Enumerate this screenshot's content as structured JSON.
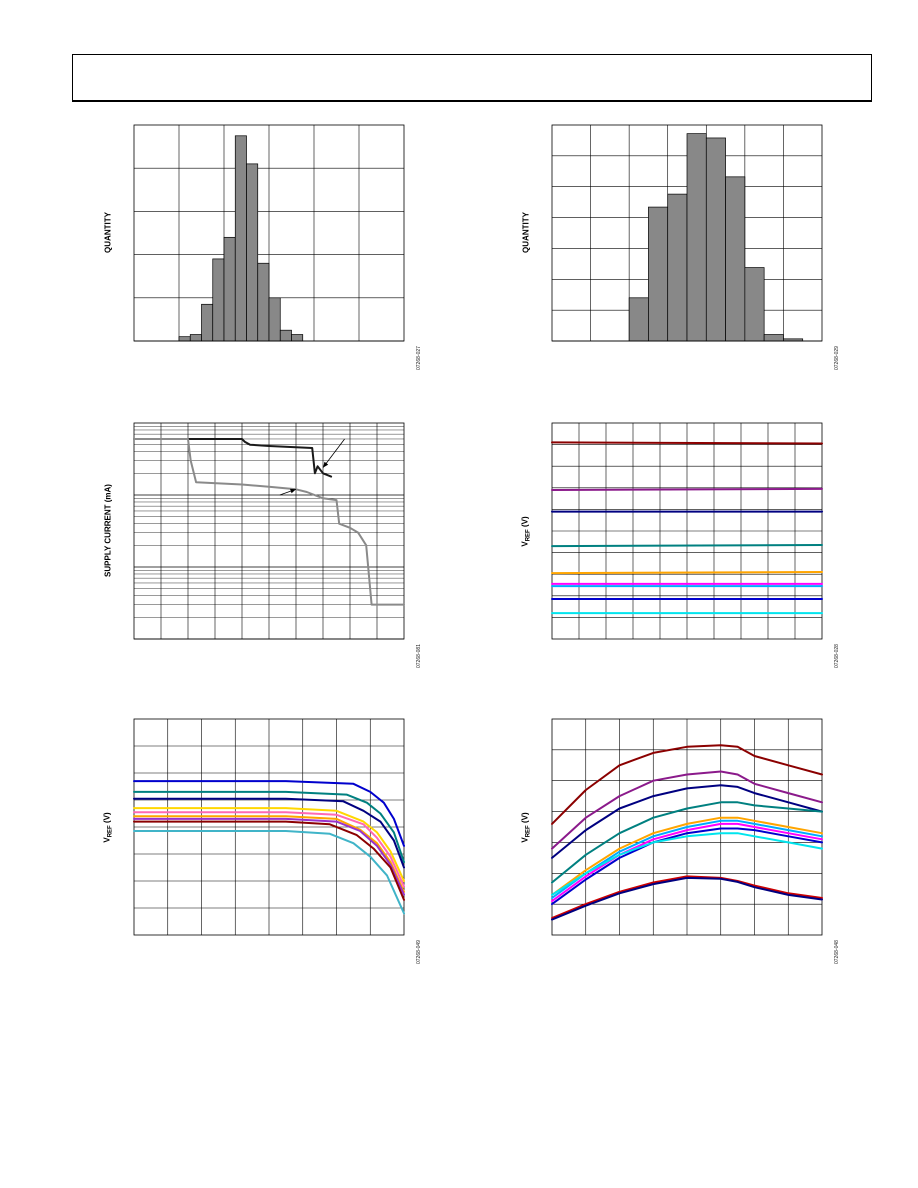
{
  "header": {
    "text": ""
  },
  "chart_data": [
    {
      "id": "c1",
      "type": "bar",
      "ylabel": "QUANTITY",
      "figure_id": "07268-027",
      "xlim": [
        0,
        12
      ],
      "ylim": [
        0,
        100
      ],
      "values": [
        0,
        0,
        0,
        0,
        2,
        3,
        17,
        38,
        48,
        95,
        82,
        36,
        20,
        5,
        3,
        0,
        0,
        0,
        0,
        0,
        0,
        0,
        0,
        0
      ],
      "grid_x": 6,
      "grid_y": 5,
      "color": "#888888"
    },
    {
      "id": "c2",
      "type": "bar",
      "ylabel": "QUANTITY",
      "figure_id": "07268-029",
      "xlim": [
        0,
        14
      ],
      "ylim": [
        0,
        100
      ],
      "values": [
        0,
        0,
        0,
        0,
        20,
        62,
        68,
        96,
        94,
        76,
        34,
        3,
        1,
        0
      ],
      "grid_x": 7,
      "grid_y": 7,
      "color": "#888888"
    },
    {
      "id": "c3",
      "type": "line",
      "ylabel": "SUPPLY CURRENT (mA)",
      "figure_id": "07268-081",
      "log_y": true,
      "xlim": [
        0,
        10
      ],
      "ylim": [
        0.001,
        1
      ],
      "grid_x": 10,
      "series": [
        {
          "color": "#1a1a1a",
          "x": [
            0,
            4.0,
            4.1,
            4.3,
            5.0,
            6.0,
            6.6,
            6.7,
            6.8,
            7.0,
            7.3
          ],
          "y": [
            0.6,
            0.6,
            0.55,
            0.5,
            0.48,
            0.46,
            0.45,
            0.2,
            0.25,
            0.2,
            0.18
          ]
        },
        {
          "color": "#8a8a8a",
          "x": [
            0,
            2.0,
            2.1,
            2.3,
            4,
            5,
            6,
            6.4,
            7.0,
            7.5,
            7.6,
            8.0,
            8.3,
            8.6,
            8.8,
            10
          ],
          "y": [
            0.6,
            0.6,
            0.3,
            0.15,
            0.14,
            0.13,
            0.12,
            0.11,
            0.09,
            0.085,
            0.04,
            0.035,
            0.03,
            0.02,
            0.003,
            0.003
          ]
        }
      ],
      "arrows": [
        {
          "from": [
            7.8,
            0.6
          ],
          "to": [
            7.0,
            0.24
          ]
        },
        {
          "from": [
            5.4,
            0.1
          ],
          "to": [
            6.0,
            0.12
          ]
        }
      ]
    },
    {
      "id": "c4",
      "type": "line",
      "ylabel": "V",
      "ylabel_sub": "REF",
      "ylabel_unit": " (V)",
      "figure_id": "07268-028",
      "xlim": [
        0,
        10
      ],
      "ylim": [
        0,
        10
      ],
      "grid_x": 10,
      "grid_y": 10,
      "series": [
        {
          "color": "#8b0000",
          "x": [
            0,
            10
          ],
          "y": [
            9.1,
            9.05
          ]
        },
        {
          "color": "#8b1a8b",
          "x": [
            0,
            10
          ],
          "y": [
            6.9,
            6.95
          ]
        },
        {
          "color": "#000080",
          "x": [
            0,
            10
          ],
          "y": [
            5.9,
            5.9
          ]
        },
        {
          "color": "#008080",
          "x": [
            0,
            10
          ],
          "y": [
            4.3,
            4.35
          ]
        },
        {
          "color": "#ffa500",
          "x": [
            0,
            10
          ],
          "y": [
            3.05,
            3.1
          ]
        },
        {
          "color": "#ff00ff",
          "x": [
            0,
            10
          ],
          "y": [
            2.55,
            2.55
          ]
        },
        {
          "color": "#00aaff",
          "x": [
            0,
            10
          ],
          "y": [
            2.45,
            2.45
          ]
        },
        {
          "color": "#0000cd",
          "x": [
            0,
            10
          ],
          "y": [
            1.85,
            1.85
          ]
        },
        {
          "color": "#00e5ee",
          "x": [
            0,
            10
          ],
          "y": [
            1.2,
            1.2
          ]
        }
      ]
    },
    {
      "id": "c5",
      "type": "line",
      "ylabel": "V",
      "ylabel_sub": "REF",
      "ylabel_unit": " (V)",
      "figure_id": "07268-049",
      "xlim": [
        0,
        8
      ],
      "ylim": [
        0,
        8
      ],
      "grid_x": 8,
      "grid_y": 8,
      "series": [
        {
          "color": "#0000cd",
          "x": [
            0,
            4.5,
            6.5,
            7.0,
            7.4,
            7.7,
            8.0
          ],
          "y": [
            5.7,
            5.7,
            5.6,
            5.3,
            4.9,
            4.3,
            3.3
          ]
        },
        {
          "color": "#008080",
          "x": [
            0,
            4.5,
            6.3,
            6.9,
            7.3,
            7.7,
            8.0
          ],
          "y": [
            5.3,
            5.3,
            5.2,
            4.9,
            4.5,
            3.8,
            2.7
          ]
        },
        {
          "color": "#000080",
          "x": [
            0,
            4.5,
            6.2,
            6.8,
            7.3,
            7.7,
            8.0
          ],
          "y": [
            5.05,
            5.05,
            4.95,
            4.6,
            4.2,
            3.5,
            2.5
          ]
        },
        {
          "color": "#ffd700",
          "x": [
            0,
            4.5,
            6.0,
            6.8,
            7.2,
            7.6,
            8.0
          ],
          "y": [
            4.7,
            4.7,
            4.6,
            4.2,
            3.8,
            3.1,
            2.0
          ]
        },
        {
          "color": "#ff69b4",
          "x": [
            0,
            4.5,
            6.0,
            6.8,
            7.2,
            7.6,
            8.0
          ],
          "y": [
            4.55,
            4.55,
            4.45,
            4.1,
            3.6,
            2.9,
            1.8
          ]
        },
        {
          "color": "#ffa500",
          "x": [
            0,
            4.5,
            6.0,
            6.7,
            7.2,
            7.6,
            8.0
          ],
          "y": [
            4.4,
            4.4,
            4.3,
            3.9,
            3.4,
            2.7,
            1.6
          ]
        },
        {
          "color": "#9932cc",
          "x": [
            0,
            4.5,
            6.0,
            6.7,
            7.2,
            7.6,
            8.0
          ],
          "y": [
            4.3,
            4.3,
            4.2,
            3.85,
            3.3,
            2.6,
            1.5
          ]
        },
        {
          "color": "#8b0000",
          "x": [
            0,
            4.5,
            5.8,
            6.6,
            7.1,
            7.6,
            8.0
          ],
          "y": [
            4.2,
            4.2,
            4.1,
            3.7,
            3.2,
            2.5,
            1.3
          ]
        },
        {
          "color": "#40b4c8",
          "x": [
            0,
            4.5,
            5.8,
            6.5,
            7.0,
            7.5,
            8.0
          ],
          "y": [
            3.85,
            3.85,
            3.75,
            3.4,
            2.9,
            2.2,
            0.8
          ]
        }
      ]
    },
    {
      "id": "c6",
      "type": "line",
      "ylabel": "V",
      "ylabel_sub": "REF",
      "ylabel_unit": " (V)",
      "figure_id": "07268-048",
      "xlim": [
        0,
        8
      ],
      "ylim": [
        0,
        7
      ],
      "grid_x": 8,
      "grid_y": 7,
      "series": [
        {
          "color": "#8b0000",
          "x": [
            0,
            1,
            2,
            3,
            4,
            5,
            5.5,
            6,
            7,
            8
          ],
          "y": [
            3.6,
            4.7,
            5.5,
            5.9,
            6.1,
            6.15,
            6.1,
            5.8,
            5.5,
            5.2
          ]
        },
        {
          "color": "#8b1a8b",
          "x": [
            0,
            1,
            2,
            3,
            4,
            5,
            5.5,
            6,
            7,
            8
          ],
          "y": [
            2.8,
            3.8,
            4.5,
            5.0,
            5.2,
            5.3,
            5.2,
            4.9,
            4.6,
            4.3
          ]
        },
        {
          "color": "#000080",
          "x": [
            0,
            1,
            2,
            3,
            4,
            5,
            5.5,
            6,
            7,
            8
          ],
          "y": [
            2.5,
            3.4,
            4.1,
            4.5,
            4.75,
            4.85,
            4.8,
            4.6,
            4.3,
            4.0
          ]
        },
        {
          "color": "#008080",
          "x": [
            0,
            1,
            2,
            3,
            4,
            5,
            5.5,
            6,
            7,
            8
          ],
          "y": [
            1.7,
            2.6,
            3.3,
            3.8,
            4.1,
            4.3,
            4.3,
            4.2,
            4.1,
            4.0
          ]
        },
        {
          "color": "#ffa500",
          "x": [
            0,
            1,
            2,
            3,
            4,
            5,
            5.5,
            6,
            7,
            8
          ],
          "y": [
            1.3,
            2.1,
            2.8,
            3.3,
            3.6,
            3.8,
            3.8,
            3.7,
            3.5,
            3.3
          ]
        },
        {
          "color": "#00aaff",
          "x": [
            0,
            1,
            2,
            3,
            4,
            5,
            5.5,
            6,
            7,
            8
          ],
          "y": [
            1.2,
            2.0,
            2.7,
            3.2,
            3.5,
            3.7,
            3.7,
            3.6,
            3.4,
            3.2
          ]
        },
        {
          "color": "#ff00ff",
          "x": [
            0,
            1,
            2,
            3,
            4,
            5,
            5.5,
            6,
            7,
            8
          ],
          "y": [
            1.1,
            1.9,
            2.6,
            3.1,
            3.4,
            3.6,
            3.6,
            3.5,
            3.3,
            3.1
          ]
        },
        {
          "color": "#0000cd",
          "x": [
            0,
            1,
            2,
            3,
            4,
            5,
            5.5,
            6,
            7,
            8
          ],
          "y": [
            1.0,
            1.8,
            2.5,
            3.0,
            3.3,
            3.45,
            3.45,
            3.4,
            3.2,
            3.0
          ]
        },
        {
          "color": "#00e5ee",
          "x": [
            0,
            1,
            2,
            3,
            4,
            5,
            5.5,
            6,
            7,
            8
          ],
          "y": [
            1.3,
            2.0,
            2.6,
            3.0,
            3.2,
            3.3,
            3.3,
            3.2,
            3.0,
            2.8
          ]
        },
        {
          "color": "#cc0000",
          "x": [
            0,
            1,
            2,
            3,
            4,
            5,
            5.5,
            6,
            7,
            8
          ],
          "y": [
            0.55,
            1.0,
            1.4,
            1.7,
            1.9,
            1.85,
            1.75,
            1.6,
            1.35,
            1.2
          ]
        },
        {
          "color": "#000080",
          "x": [
            0,
            1,
            2,
            3,
            4,
            5,
            5.5,
            6,
            7,
            8
          ],
          "y": [
            0.5,
            0.95,
            1.35,
            1.65,
            1.85,
            1.82,
            1.72,
            1.55,
            1.3,
            1.15
          ]
        }
      ]
    }
  ]
}
